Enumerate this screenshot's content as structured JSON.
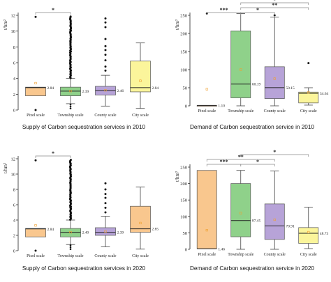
{
  "panels": [
    {
      "type": "box",
      "ylabel": "t/hm²",
      "ylim": [
        0,
        12
      ],
      "yticks": [
        0,
        2,
        4,
        6,
        8,
        10,
        12
      ],
      "caption": "Supply of Carbon sequestration services in 2010",
      "categories": [
        "Pixel scale",
        "Township scale",
        "County scale",
        "City scale"
      ],
      "boxes": [
        {
          "q1": 1.8,
          "median": 2.84,
          "q3": 2.9,
          "whisker_low": 1.8,
          "whisker_high": 2.9,
          "mean": 3.4,
          "label": "2.84",
          "color": "#f9c78e",
          "outliers": [
            11.8,
            0
          ]
        },
        {
          "q1": 1.8,
          "median": 2.39,
          "q3": 2.9,
          "whisker_low": 0.8,
          "whisker_high": 4.0,
          "mean": 2.4,
          "label": "2.39",
          "color": "#8fd18a",
          "outliers": "dense-high"
        },
        {
          "q1": 1.9,
          "median": 2.46,
          "q3": 3.0,
          "whisker_low": 0.5,
          "whisker_high": 4.4,
          "mean": 2.5,
          "label": "2.46",
          "color": "#b7a3d8",
          "outliers": [
            5.0,
            5.5,
            6.3,
            7.0,
            7.6,
            8.1,
            9.0,
            10.5,
            11.1,
            11.6
          ]
        },
        {
          "q1": 2.3,
          "median": 2.84,
          "q3": 6.2,
          "whisker_low": 0.2,
          "whisker_high": 8.5,
          "mean": 3.7,
          "label": "2.84",
          "color": "#fbf59b",
          "outliers": []
        }
      ],
      "sig": [
        {
          "from": 0,
          "to": 1,
          "text": "*",
          "level": 0
        }
      ]
    },
    {
      "type": "box",
      "ylabel": "t/hm²",
      "ylim": [
        0,
        250
      ],
      "yticks": [
        0,
        50,
        100,
        150,
        200,
        250
      ],
      "caption": "Demand of Carbon sequestration service in 2010",
      "categories": [
        "Pixel scale",
        "Township scale",
        "County scale",
        "City scale"
      ],
      "boxes": [
        {
          "q1": 1.1,
          "median": 1.1,
          "q3": 1.1,
          "whisker_low": 1.1,
          "whisker_high": 1.1,
          "mean": 46,
          "label": "1.10",
          "color": "#f9c78e",
          "outliers": [
            255
          ]
        },
        {
          "q1": 22,
          "median": 60.19,
          "q3": 207,
          "whisker_low": 0,
          "whisker_high": 255,
          "mean": 100,
          "label": "60.19",
          "color": "#8fd18a",
          "outliers": []
        },
        {
          "q1": 20,
          "median": 50.15,
          "q3": 108,
          "whisker_low": 0,
          "whisker_high": 245,
          "mean": 75,
          "label": "50.15",
          "color": "#b7a3d8",
          "outliers": [
            250
          ]
        },
        {
          "q1": 8,
          "median": 34.64,
          "q3": 38,
          "whisker_low": 2,
          "whisker_high": 50,
          "mean": 37,
          "label": "34.64",
          "color": "#fbf59b",
          "outliers": [
            118
          ]
        }
      ],
      "sig": [
        {
          "from": 0,
          "to": 1,
          "text": "***",
          "level": 0
        },
        {
          "from": 1,
          "to": 2,
          "text": "*",
          "level": 0
        },
        {
          "from": 1,
          "to": 3,
          "text": "**",
          "level": 1
        },
        {
          "from": 1,
          "to": 3,
          "text": "*",
          "level": 2
        }
      ]
    },
    {
      "type": "box",
      "ylabel": "t/hm²",
      "ylim": [
        0,
        12
      ],
      "yticks": [
        0,
        2,
        4,
        6,
        8,
        10,
        12
      ],
      "caption": "Supply of Carbon sequestration services in 2020",
      "categories": [
        "Pixel scale",
        "Township scale",
        "County scale",
        "City scale"
      ],
      "boxes": [
        {
          "q1": 1.8,
          "median": 2.84,
          "q3": 2.9,
          "whisker_low": 1.8,
          "whisker_high": 2.9,
          "mean": 3.3,
          "label": "2.84",
          "color": "#f9c78e",
          "outliers": [
            11.8,
            0
          ]
        },
        {
          "q1": 1.8,
          "median": 2.4,
          "q3": 2.9,
          "whisker_low": 0.8,
          "whisker_high": 4.0,
          "mean": 2.4,
          "label": "2.40",
          "color": "#8fd18a",
          "outliers": "dense-high"
        },
        {
          "q1": 2.0,
          "median": 2.39,
          "q3": 3.0,
          "whisker_low": 0.5,
          "whisker_high": 4.5,
          "mean": 2.5,
          "label": "2.39",
          "color": "#b7a3d8",
          "outliers": [
            5.0,
            5.6,
            6.2,
            6.9,
            7.4,
            8.0,
            8.8
          ]
        },
        {
          "q1": 2.4,
          "median": 2.85,
          "q3": 5.8,
          "whisker_low": 0.2,
          "whisker_high": 8.3,
          "mean": 3.6,
          "label": "2.85",
          "color": "#f9c78e",
          "outliers": []
        }
      ],
      "sig": [
        {
          "from": 0,
          "to": 1,
          "text": "*",
          "level": 0
        }
      ]
    },
    {
      "type": "box",
      "ylabel": "t/hm²",
      "ylim": [
        0,
        250
      ],
      "yticks": [
        0,
        50,
        100,
        150,
        200,
        250
      ],
      "caption": "Demand of Carbon sequestration service in 2020",
      "categories": [
        "Pixel scale",
        "Township scale",
        "County scale",
        "City scale"
      ],
      "boxes": [
        {
          "q1": 1.46,
          "median": 1.46,
          "q3": 240,
          "whisker_low": 1.46,
          "whisker_high": 240,
          "mean": 58,
          "label": "1.46",
          "color": "#f9c78e",
          "outliers": []
        },
        {
          "q1": 38,
          "median": 87.45,
          "q3": 200,
          "whisker_low": 0,
          "whisker_high": 240,
          "mean": 110,
          "label": "87.45",
          "color": "#8fd18a",
          "outliers": []
        },
        {
          "q1": 30,
          "median": 70.91,
          "q3": 138,
          "whisker_low": 0,
          "whisker_high": 238,
          "mean": 90,
          "label": "70.91",
          "color": "#b7a3d8",
          "outliers": []
        },
        {
          "q1": 18,
          "median": 48.73,
          "q3": 66,
          "whisker_low": 2,
          "whisker_high": 128,
          "mean": 52,
          "label": "48.73",
          "color": "#fbf59b",
          "outliers": []
        }
      ],
      "sig": [
        {
          "from": 0,
          "to": 1,
          "text": "***",
          "level": 0
        },
        {
          "from": 1,
          "to": 2,
          "text": "*",
          "level": 0
        },
        {
          "from": 0,
          "to": 2,
          "text": "**",
          "level": 1
        },
        {
          "from": 1,
          "to": 3,
          "text": "*",
          "level": 2
        }
      ]
    }
  ],
  "colors": {
    "axis": "#222222",
    "mean_marker": "#f0a030",
    "outlier": "#111111",
    "sig_bracket": "#888888"
  }
}
